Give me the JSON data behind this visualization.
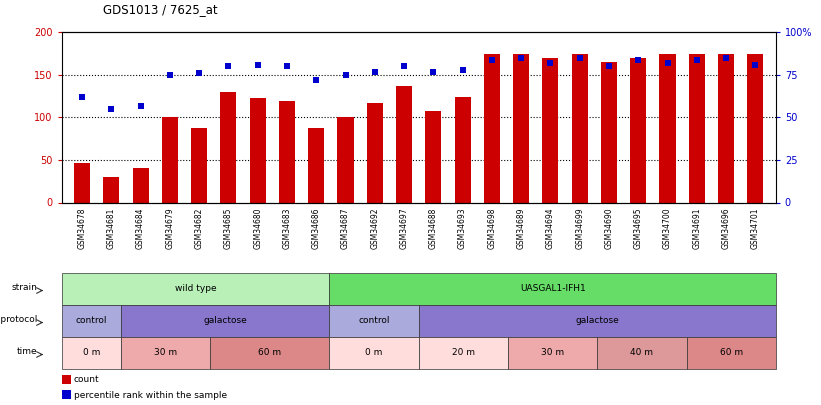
{
  "title": "GDS1013 / 7625_at",
  "samples": [
    "GSM34678",
    "GSM34681",
    "GSM34684",
    "GSM34679",
    "GSM34682",
    "GSM34685",
    "GSM34680",
    "GSM34683",
    "GSM34686",
    "GSM34687",
    "GSM34692",
    "GSM34697",
    "GSM34688",
    "GSM34693",
    "GSM34698",
    "GSM34689",
    "GSM34694",
    "GSM34699",
    "GSM34690",
    "GSM34695",
    "GSM34700",
    "GSM34691",
    "GSM34696",
    "GSM34701"
  ],
  "count_values": [
    46,
    30,
    40,
    100,
    88,
    130,
    123,
    119,
    88,
    100,
    117,
    137,
    108,
    124,
    175,
    175,
    170,
    175,
    165,
    170,
    175,
    175,
    175,
    175
  ],
  "percentile_values": [
    62,
    55,
    57,
    75,
    76,
    80,
    81,
    80,
    72,
    75,
    77,
    80,
    77,
    78,
    84,
    85,
    82,
    85,
    80,
    84,
    82,
    84,
    85,
    81
  ],
  "bar_color": "#cc0000",
  "dot_color": "#0000cc",
  "ylim_left": [
    0,
    200
  ],
  "ylim_right": [
    0,
    100
  ],
  "yticks_left": [
    0,
    50,
    100,
    150,
    200
  ],
  "yticks_right": [
    0,
    25,
    50,
    75,
    100
  ],
  "yticklabels_right": [
    "0",
    "25",
    "50",
    "75",
    "100%"
  ],
  "strain_blocks": [
    {
      "label": "wild type",
      "start": 0,
      "end": 9,
      "color": "#b8f0b8"
    },
    {
      "label": "UASGAL1-IFH1",
      "start": 9,
      "end": 24,
      "color": "#66dd66"
    }
  ],
  "growth_blocks": [
    {
      "label": "control",
      "start": 0,
      "end": 2,
      "color": "#aaaadd"
    },
    {
      "label": "galactose",
      "start": 2,
      "end": 9,
      "color": "#8877cc"
    },
    {
      "label": "control",
      "start": 9,
      "end": 12,
      "color": "#aaaadd"
    },
    {
      "label": "galactose",
      "start": 12,
      "end": 24,
      "color": "#8877cc"
    }
  ],
  "time_blocks": [
    {
      "label": "0 m",
      "start": 0,
      "end": 2,
      "color": "#ffdddd"
    },
    {
      "label": "30 m",
      "start": 2,
      "end": 5,
      "color": "#eeaaaa"
    },
    {
      "label": "60 m",
      "start": 5,
      "end": 9,
      "color": "#dd8888"
    },
    {
      "label": "0 m",
      "start": 9,
      "end": 12,
      "color": "#ffdddd"
    },
    {
      "label": "20 m",
      "start": 12,
      "end": 15,
      "color": "#ffdddd"
    },
    {
      "label": "30 m",
      "start": 15,
      "end": 18,
      "color": "#eeaaaa"
    },
    {
      "label": "40 m",
      "start": 18,
      "end": 21,
      "color": "#dd9999"
    },
    {
      "label": "60 m",
      "start": 21,
      "end": 24,
      "color": "#dd8888"
    }
  ],
  "legend_items": [
    {
      "label": "count",
      "color": "#cc0000"
    },
    {
      "label": "percentile rank within the sample",
      "color": "#0000cc"
    }
  ]
}
